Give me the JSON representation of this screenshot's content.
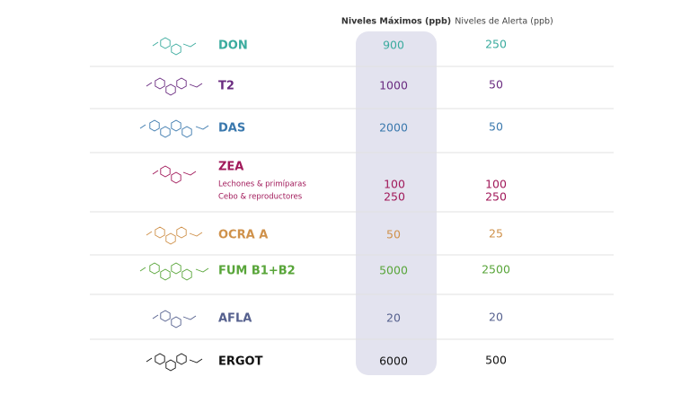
{
  "header": {
    "max": "Niveles Máximos (ppb)",
    "alert": "Niveles de Alerta (ppb)"
  },
  "rows": [
    {
      "name": "DON",
      "color": "#3aab9e",
      "max": 900,
      "alert": 250
    },
    {
      "name": "T2",
      "color": "#6a2b80",
      "max": 1000,
      "alert": 50
    },
    {
      "name": "DAS",
      "color": "#3a78ad",
      "max": 2000,
      "alert": 50
    },
    {
      "name": "ZEA",
      "color": "#a1195a",
      "sub": [
        {
          "label": "Lechones & primíparas",
          "max": 100,
          "alert": 100
        },
        {
          "label": "Cebo & reproductores",
          "max": 250,
          "alert": 250
        }
      ]
    },
    {
      "name": "OCRA A",
      "color": "#cf914a",
      "max": 50,
      "alert": 25
    },
    {
      "name": "FUM B1+B2",
      "color": "#58a539",
      "max": 5000,
      "alert": 2500
    },
    {
      "name": "AFLA",
      "color": "#55608e",
      "max": 20,
      "alert": 20
    },
    {
      "name": "ERGOT",
      "color": "#111111",
      "max": 6000,
      "alert": 500
    }
  ]
}
